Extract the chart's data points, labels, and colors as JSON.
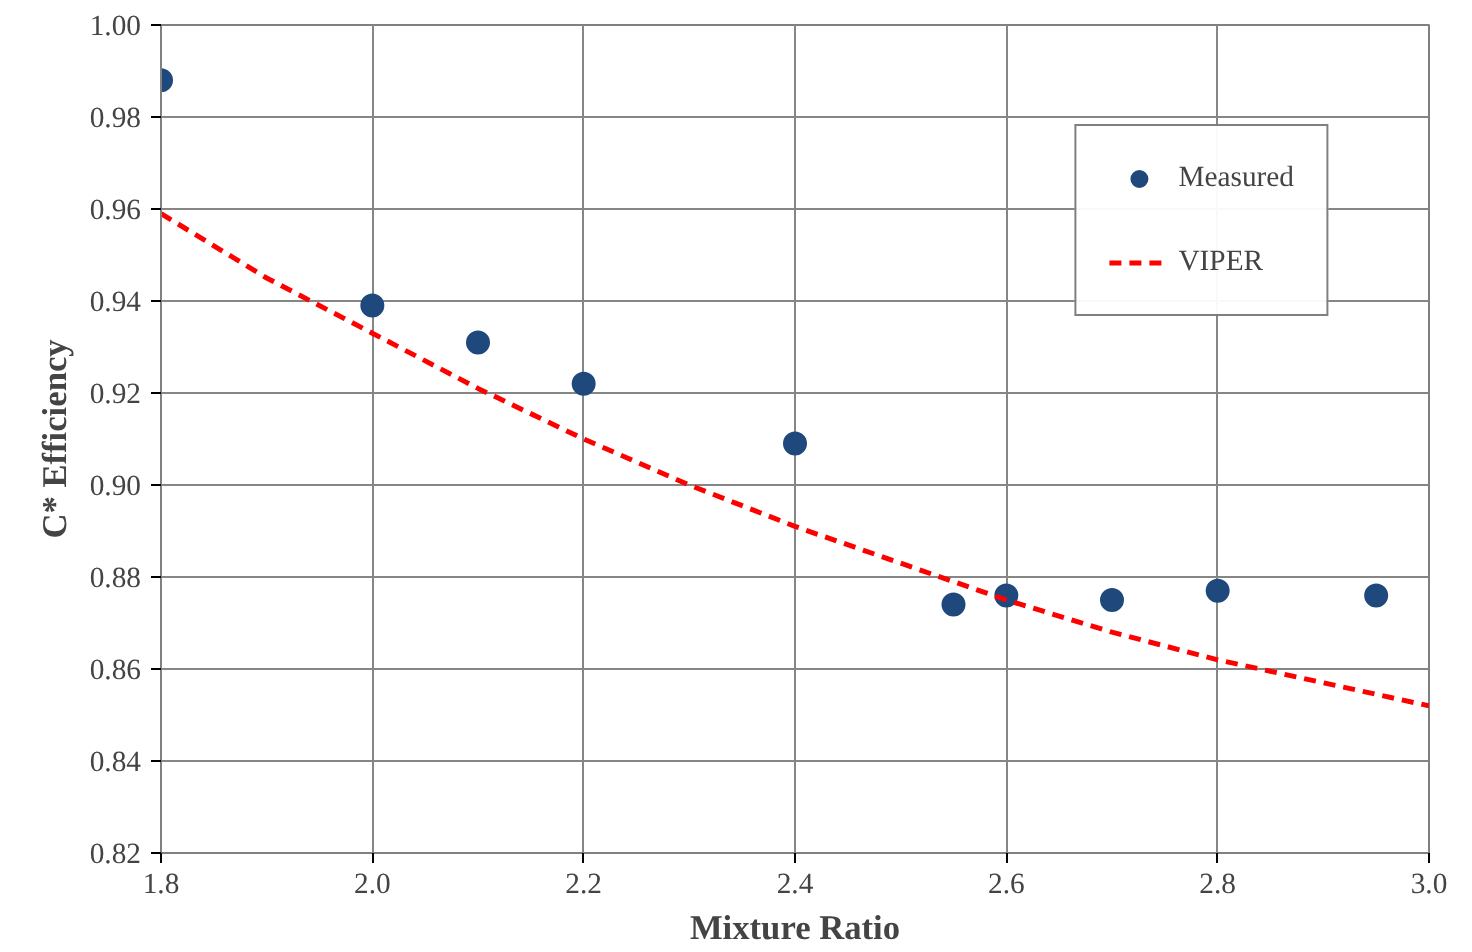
{
  "chart_data": {
    "type": "scatter",
    "xlabel": "Mixture Ratio",
    "ylabel": "C* Efficiency",
    "series": [
      {
        "name": "Measured",
        "color": "#1f497d",
        "marker": "circle",
        "x": [
          1.8,
          2.0,
          2.1,
          2.2,
          2.4,
          2.55,
          2.6,
          2.7,
          2.8,
          2.95
        ],
        "values": [
          0.988,
          0.939,
          0.931,
          0.922,
          0.909,
          0.874,
          0.876,
          0.875,
          0.877,
          0.876
        ]
      },
      {
        "name": "VIPER",
        "type": "line",
        "color": "#ff0000",
        "line_style": "dashed",
        "x": [
          1.8,
          1.9,
          2.0,
          2.1,
          2.2,
          2.3,
          2.4,
          2.5,
          2.6,
          2.7,
          2.8,
          2.9,
          3.0
        ],
        "values": [
          0.959,
          0.945,
          0.933,
          0.921,
          0.91,
          0.9,
          0.891,
          0.883,
          0.875,
          0.868,
          0.862,
          0.857,
          0.852
        ]
      }
    ],
    "xlim": [
      1.8,
      3.0
    ],
    "ylim": [
      0.82,
      1.0
    ],
    "xticks": [
      1.8,
      {
        "value": 2.0,
        "label": "2.0"
      },
      2.2,
      2.4,
      2.6,
      2.8,
      {
        "value": 3.0,
        "label": "3.0"
      }
    ],
    "yticks": [
      0.82,
      0.84,
      0.86,
      0.88,
      {
        "value": 0.9,
        "label": "0.90"
      },
      0.92,
      0.94,
      0.96,
      0.98,
      {
        "value": 1.0,
        "label": "1.00"
      }
    ],
    "grid": true,
    "legend": "top right"
  }
}
